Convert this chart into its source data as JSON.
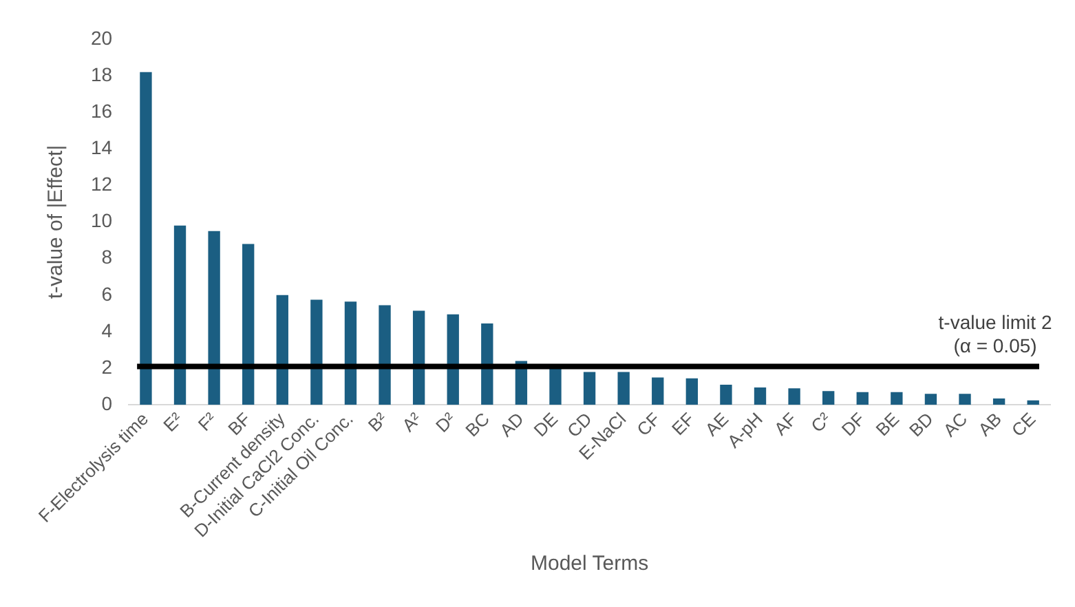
{
  "chart_data": {
    "type": "bar",
    "xlabel": "Model Terms",
    "ylabel": "t-value of |Effect|",
    "categories": [
      "F-Electrolysis time",
      "E²",
      "F²",
      "BF",
      "B-Current density",
      "D-Initial CaCl2 Conc.",
      "C-Initial Oil Conc.",
      "B²",
      "A²",
      "D²",
      "BC",
      "AD",
      "DE",
      "CD",
      "E-NaCl",
      "CF",
      "EF",
      "AE",
      "A-pH",
      "AF",
      "C²",
      "DF",
      "BE",
      "BD",
      "AC",
      "AB",
      "CE"
    ],
    "values": [
      18.2,
      9.8,
      9.5,
      8.8,
      6.0,
      5.75,
      5.65,
      5.45,
      5.15,
      4.95,
      4.45,
      2.4,
      2.1,
      1.8,
      1.8,
      1.5,
      1.45,
      1.1,
      0.95,
      0.9,
      0.75,
      0.7,
      0.7,
      0.6,
      0.6,
      0.35,
      0.25
    ],
    "color": "#1b5e82",
    "ylim": [
      0,
      20
    ],
    "yticks": [
      0,
      2,
      4,
      6,
      8,
      10,
      12,
      14,
      16,
      18,
      20
    ],
    "grid": false,
    "legend": false,
    "ref_lines": [
      {
        "axis": "y",
        "value": 2.1,
        "label": "t-value limit 2\n(α = 0.05)",
        "color": "#000000"
      }
    ]
  }
}
